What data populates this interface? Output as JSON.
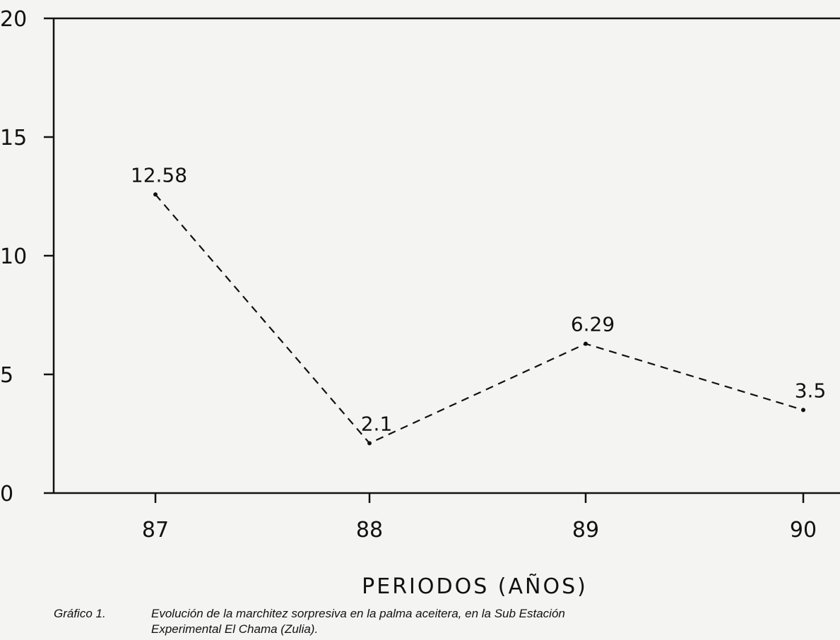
{
  "chart_data": {
    "type": "line",
    "x": [
      "87",
      "88",
      "89",
      "90"
    ],
    "series": [
      {
        "values": [
          12.58,
          2.1,
          6.29,
          3.5
        ],
        "data_labels": [
          "12.58",
          "2.1",
          "6.29",
          "3.5"
        ],
        "line_style": "dashed"
      }
    ],
    "ylim": [
      0,
      20
    ],
    "yticks": [
      "0",
      "5",
      "10",
      "15",
      "20"
    ],
    "xlabel": "PERIODOS (AÑOS)",
    "ylabel": "",
    "grid": false,
    "colors": {
      "line": "#111111",
      "axis": "#111111"
    }
  },
  "caption": {
    "number": "Gráfico 1.",
    "line1": "Evolución de la marchitez sorpresiva en la palma aceitera, en la Sub Estación",
    "line2": "Experimental El Chama (Zulia)."
  }
}
